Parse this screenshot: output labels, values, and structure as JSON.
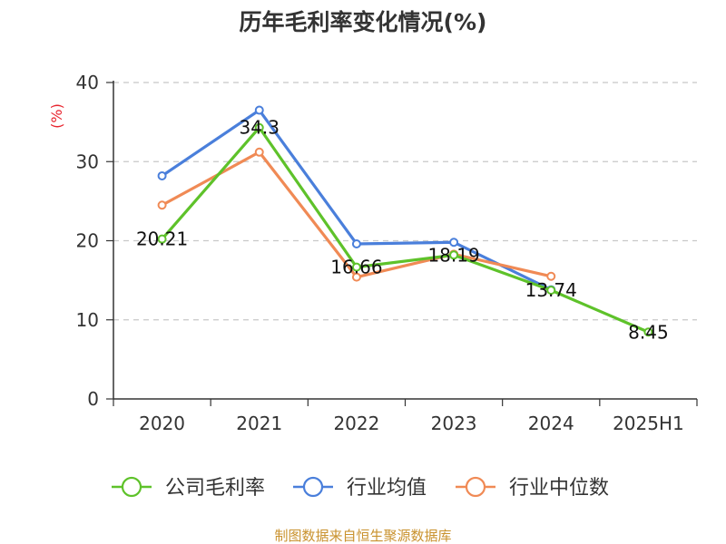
{
  "chart_data": {
    "type": "line",
    "title": "历年毛利率变化情况(%)",
    "ylabel": "(%)",
    "xlabel": "",
    "categories": [
      "2020",
      "2021",
      "2022",
      "2023",
      "2024",
      "2025H1"
    ],
    "ylim": [
      0,
      40
    ],
    "yticks": [
      0,
      10,
      20,
      30,
      40
    ],
    "grid": true,
    "legend_position": "bottom",
    "series": [
      {
        "name": "公司毛利率",
        "color": "#5ec22a",
        "values": [
          20.21,
          34.3,
          16.66,
          18.19,
          13.74,
          8.45
        ],
        "data_labels": [
          "20.21",
          "34.3",
          "16.66",
          "18.19",
          "13.74",
          "8.45"
        ]
      },
      {
        "name": "行业均值",
        "color": "#4a7fdb",
        "values": [
          28.2,
          36.5,
          19.6,
          19.8,
          13.8,
          null
        ]
      },
      {
        "name": "行业中位数",
        "color": "#f08a55",
        "values": [
          24.5,
          31.2,
          15.4,
          18.3,
          15.5,
          null
        ]
      }
    ]
  },
  "source_text": "制图数据来自恒生聚源数据库"
}
